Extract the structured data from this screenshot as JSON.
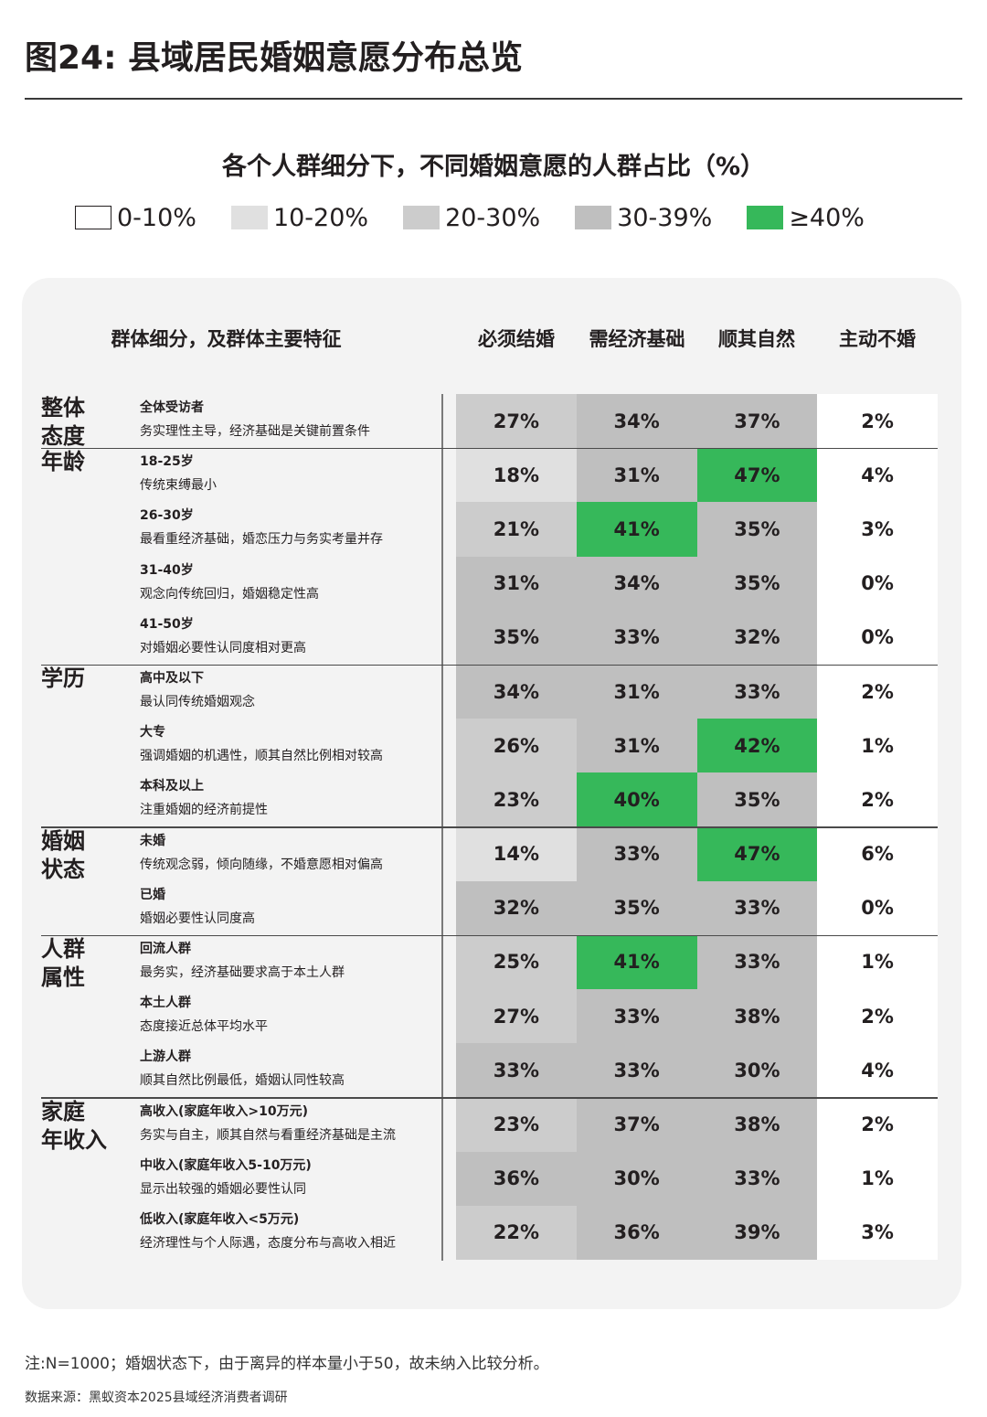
{
  "title": "图24: 县域居民婚姻意愿分布总览",
  "subtitle": "各个人群细分下，不同婚姻意愿的人群占比（%）",
  "legend": [
    {
      "label": "0-10%",
      "color": "#ffffff",
      "border": "#231f20"
    },
    {
      "label": "10-20%",
      "color": "#e0e0e0",
      "border": "none"
    },
    {
      "label": "20-30%",
      "color": "#cccccc",
      "border": "none"
    },
    {
      "label": "30-39%",
      "color": "#bfbfbf",
      "border": "none"
    },
    {
      "label": "≥40%",
      "color": "#36b85a",
      "border": "none"
    }
  ],
  "table": {
    "segment_header": "群体细分，及群体主要特征",
    "columns": [
      "必须结婚",
      "需经济基础",
      "顺其自然",
      "主动不婚"
    ]
  },
  "groups": [
    {
      "label_line1": "整体",
      "label_line2": "态度",
      "rows": [
        {
          "name": "全体受访者",
          "desc": "务实理性主导，经济基础是关键前置条件",
          "values": [
            "27%",
            "34%",
            "37%",
            "2%"
          ]
        }
      ]
    },
    {
      "label_line1": "年龄",
      "label_line2": "",
      "rows": [
        {
          "name": "18-25岁",
          "desc": "传统束缚最小",
          "values": [
            "18%",
            "31%",
            "47%",
            "4%"
          ]
        },
        {
          "name": "26-30岁",
          "desc": "最看重经济基础，婚恋压力与务实考量并存",
          "values": [
            "21%",
            "41%",
            "35%",
            "3%"
          ]
        },
        {
          "name": "31-40岁",
          "desc": "观念向传统回归，婚姻稳定性高",
          "values": [
            "31%",
            "34%",
            "35%",
            "0%"
          ]
        },
        {
          "name": "41-50岁",
          "desc": "对婚姻必要性认同度相对更高",
          "values": [
            "35%",
            "33%",
            "32%",
            "0%"
          ]
        }
      ]
    },
    {
      "label_line1": "学历",
      "label_line2": "",
      "rows": [
        {
          "name": "高中及以下",
          "desc": "最认同传统婚姻观念",
          "values": [
            "34%",
            "31%",
            "33%",
            "2%"
          ]
        },
        {
          "name": "大专",
          "desc": "强调婚姻的机遇性，顺其自然比例相对较高",
          "values": [
            "26%",
            "31%",
            "42%",
            "1%"
          ]
        },
        {
          "name": "本科及以上",
          "desc": "注重婚姻的经济前提性",
          "values": [
            "23%",
            "40%",
            "35%",
            "2%"
          ]
        }
      ]
    },
    {
      "label_line1": "婚姻",
      "label_line2": "状态",
      "rows": [
        {
          "name": "未婚",
          "desc": "传统观念弱，倾向随缘，不婚意愿相对偏高",
          "values": [
            "14%",
            "33%",
            "47%",
            "6%"
          ]
        },
        {
          "name": "已婚",
          "desc": "婚姻必要性认同度高",
          "values": [
            "32%",
            "35%",
            "33%",
            "0%"
          ]
        }
      ]
    },
    {
      "label_line1": "人群",
      "label_line2": "属性",
      "rows": [
        {
          "name": "回流人群",
          "desc": "最务实，经济基础要求高于本土人群",
          "values": [
            "25%",
            "41%",
            "33%",
            "1%"
          ]
        },
        {
          "name": "本土人群",
          "desc": "态度接近总体平均水平",
          "values": [
            "27%",
            "33%",
            "38%",
            "2%"
          ]
        },
        {
          "name": "上游人群",
          "desc": "顺其自然比例最低，婚姻认同性较高",
          "values": [
            "33%",
            "33%",
            "30%",
            "4%"
          ]
        }
      ]
    },
    {
      "label_line1": "家庭",
      "label_line2": "年收入",
      "rows": [
        {
          "name": "高收入(家庭年收入>10万元)",
          "desc": "务实与自主，顺其自然与看重经济基础是主流",
          "values": [
            "23%",
            "37%",
            "38%",
            "2%"
          ]
        },
        {
          "name": "中收入(家庭年收入5-10万元)",
          "desc": "显示出较强的婚姻必要性认同",
          "values": [
            "36%",
            "30%",
            "33%",
            "1%"
          ]
        },
        {
          "name": "低收入(家庭年收入<5万元)",
          "desc": "经济理性与个人际遇，态度分布与高收入相近",
          "values": [
            "22%",
            "36%",
            "39%",
            "3%"
          ]
        }
      ]
    }
  ],
  "note": "注:N=1000；婚姻状态下，由于离异的样本量小于50，故未纳入比较分析。",
  "source": "数据来源：黑蚁资本2025县域经济消费者调研",
  "chart_data": {
    "type": "heatmap",
    "title": "图24: 县域居民婚姻意愿分布总览",
    "subtitle": "各个人群细分下，不同婚姻意愿的人群占比（%）",
    "columns": [
      "必须结婚",
      "需经济基础",
      "顺其自然",
      "主动不婚"
    ],
    "rows": [
      {
        "group": "整体态度",
        "segment": "全体受访者",
        "values": [
          27,
          34,
          37,
          2
        ]
      },
      {
        "group": "年龄",
        "segment": "18-25岁",
        "values": [
          18,
          31,
          47,
          4
        ]
      },
      {
        "group": "年龄",
        "segment": "26-30岁",
        "values": [
          21,
          41,
          35,
          3
        ]
      },
      {
        "group": "年龄",
        "segment": "31-40岁",
        "values": [
          31,
          34,
          35,
          0
        ]
      },
      {
        "group": "年龄",
        "segment": "41-50岁",
        "values": [
          35,
          33,
          32,
          0
        ]
      },
      {
        "group": "学历",
        "segment": "高中及以下",
        "values": [
          34,
          31,
          33,
          2
        ]
      },
      {
        "group": "学历",
        "segment": "大专",
        "values": [
          26,
          31,
          42,
          1
        ]
      },
      {
        "group": "学历",
        "segment": "本科及以上",
        "values": [
          23,
          40,
          35,
          2
        ]
      },
      {
        "group": "婚姻状态",
        "segment": "未婚",
        "values": [
          14,
          33,
          47,
          6
        ]
      },
      {
        "group": "婚姻状态",
        "segment": "已婚",
        "values": [
          32,
          35,
          33,
          0
        ]
      },
      {
        "group": "人群属性",
        "segment": "回流人群",
        "values": [
          25,
          41,
          33,
          1
        ]
      },
      {
        "group": "人群属性",
        "segment": "本土人群",
        "values": [
          27,
          33,
          38,
          2
        ]
      },
      {
        "group": "人群属性",
        "segment": "上游人群",
        "values": [
          33,
          33,
          30,
          4
        ]
      },
      {
        "group": "家庭年收入",
        "segment": "高收入(家庭年收入>10万元)",
        "values": [
          23,
          37,
          38,
          2
        ]
      },
      {
        "group": "家庭年收入",
        "segment": "中收入(家庭年收入5-10万元)",
        "values": [
          36,
          30,
          33,
          1
        ]
      },
      {
        "group": "家庭年收入",
        "segment": "低收入(家庭年收入<5万元)",
        "values": [
          22,
          36,
          39,
          3
        ]
      }
    ],
    "color_scale": [
      {
        "range": "0-10%",
        "color": "#ffffff"
      },
      {
        "range": "10-20%",
        "color": "#e0e0e0"
      },
      {
        "range": "20-30%",
        "color": "#cccccc"
      },
      {
        "range": "30-39%",
        "color": "#bfbfbf"
      },
      {
        "range": "≥40%",
        "color": "#36b85a"
      }
    ],
    "unit": "%"
  }
}
